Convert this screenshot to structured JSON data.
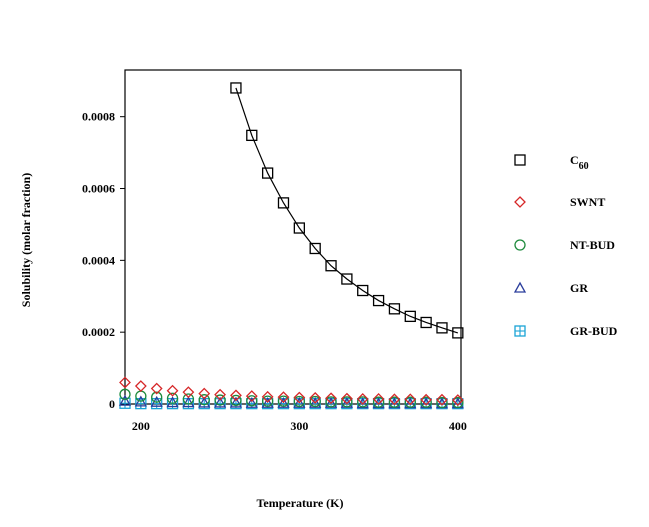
{
  "chart_data": {
    "type": "scatter",
    "title": "",
    "xlabel": "Temperature (K)",
    "ylabel": "Solubility (molar fraction)",
    "xlim": [
      190,
      402
    ],
    "ylim": [
      0,
      0.00093
    ],
    "xticks": [
      200,
      300,
      400
    ],
    "xtick_labels": [
      "200",
      "300",
      "400"
    ],
    "yticks": [
      0,
      0.0002,
      0.0004,
      0.0006,
      0.0008
    ],
    "ytick_labels": [
      "0",
      "0.0002",
      "0.0004",
      "0.0006",
      "0.0008"
    ],
    "grid": false,
    "legend_position": "right",
    "series": [
      {
        "name": "C60",
        "label_main": "C",
        "label_sub": "60",
        "marker": "square",
        "color": "#000000",
        "line": true,
        "x": [
          260,
          270,
          280,
          290,
          300,
          310,
          320,
          330,
          340,
          350,
          360,
          370,
          380,
          390,
          400
        ],
        "y": [
          0.00088,
          0.000748,
          0.000643,
          0.00056,
          0.00049,
          0.000433,
          0.000385,
          0.000348,
          0.000316,
          0.000288,
          0.000265,
          0.000244,
          0.000227,
          0.000212,
          0.000198
        ]
      },
      {
        "name": "SWNT",
        "marker": "diamond",
        "color": "#d62728",
        "line": false,
        "x": [
          190,
          200,
          210,
          220,
          230,
          240,
          250,
          260,
          270,
          280,
          290,
          300,
          310,
          320,
          330,
          340,
          350,
          360,
          370,
          380,
          390,
          400
        ],
        "y": [
          6e-05,
          5e-05,
          4.3e-05,
          3.7e-05,
          3.3e-05,
          2.9e-05,
          2.6e-05,
          2.4e-05,
          2.2e-05,
          2e-05,
          1.9e-05,
          1.8e-05,
          1.7e-05,
          1.6e-05,
          1.5e-05,
          1.4e-05,
          1.4e-05,
          1.3e-05,
          1.3e-05,
          1.2e-05,
          1.2e-05,
          1.1e-05
        ]
      },
      {
        "name": "NT-BUD",
        "marker": "circle",
        "color": "#1e8a3c",
        "line": false,
        "x": [
          190,
          200,
          210,
          220,
          230,
          240,
          250,
          260,
          270,
          280,
          290,
          300,
          310,
          320,
          330,
          340,
          350,
          360,
          370,
          380,
          390,
          400
        ],
        "y": [
          2.7e-05,
          2.2e-05,
          1.9e-05,
          1.6e-05,
          1.4e-05,
          1.2e-05,
          1.1e-05,
          1e-05,
          9e-06,
          8e-06,
          8e-06,
          7e-06,
          7e-06,
          6e-06,
          6e-06,
          6e-06,
          5e-06,
          5e-06,
          5e-06,
          5e-06,
          4e-06,
          4e-06
        ]
      },
      {
        "name": "GR",
        "marker": "triangle",
        "color": "#2a3d9c",
        "line": false,
        "x": [
          190,
          200,
          210,
          220,
          230,
          240,
          250,
          260,
          270,
          280,
          290,
          300,
          310,
          320,
          330,
          340,
          350,
          360,
          370,
          380,
          390,
          400
        ],
        "y": [
          8e-06,
          6e-06,
          5e-06,
          4e-06,
          4e-06,
          3e-06,
          3e-06,
          3e-06,
          2e-06,
          2e-06,
          2e-06,
          2e-06,
          2e-06,
          2e-06,
          2e-06,
          1e-06,
          1e-06,
          1e-06,
          1e-06,
          1e-06,
          1e-06,
          1e-06
        ]
      },
      {
        "name": "GR-BUD",
        "marker": "boxcross",
        "color": "#1aa3d6",
        "line": false,
        "x": [
          190,
          200,
          210,
          220,
          230,
          240,
          250,
          260,
          270,
          280,
          290,
          300,
          310,
          320,
          330,
          340,
          350,
          360,
          370,
          380,
          390,
          400
        ],
        "y": [
          2e-06,
          1e-06,
          1e-06,
          1e-06,
          1e-06,
          1e-06,
          1e-06,
          1e-06,
          1e-06,
          1e-06,
          1e-06,
          1e-06,
          1e-06,
          1e-06,
          1e-06,
          1e-06,
          1e-06,
          1e-06,
          1e-06,
          1e-06,
          1e-06,
          1e-06
        ]
      }
    ]
  }
}
